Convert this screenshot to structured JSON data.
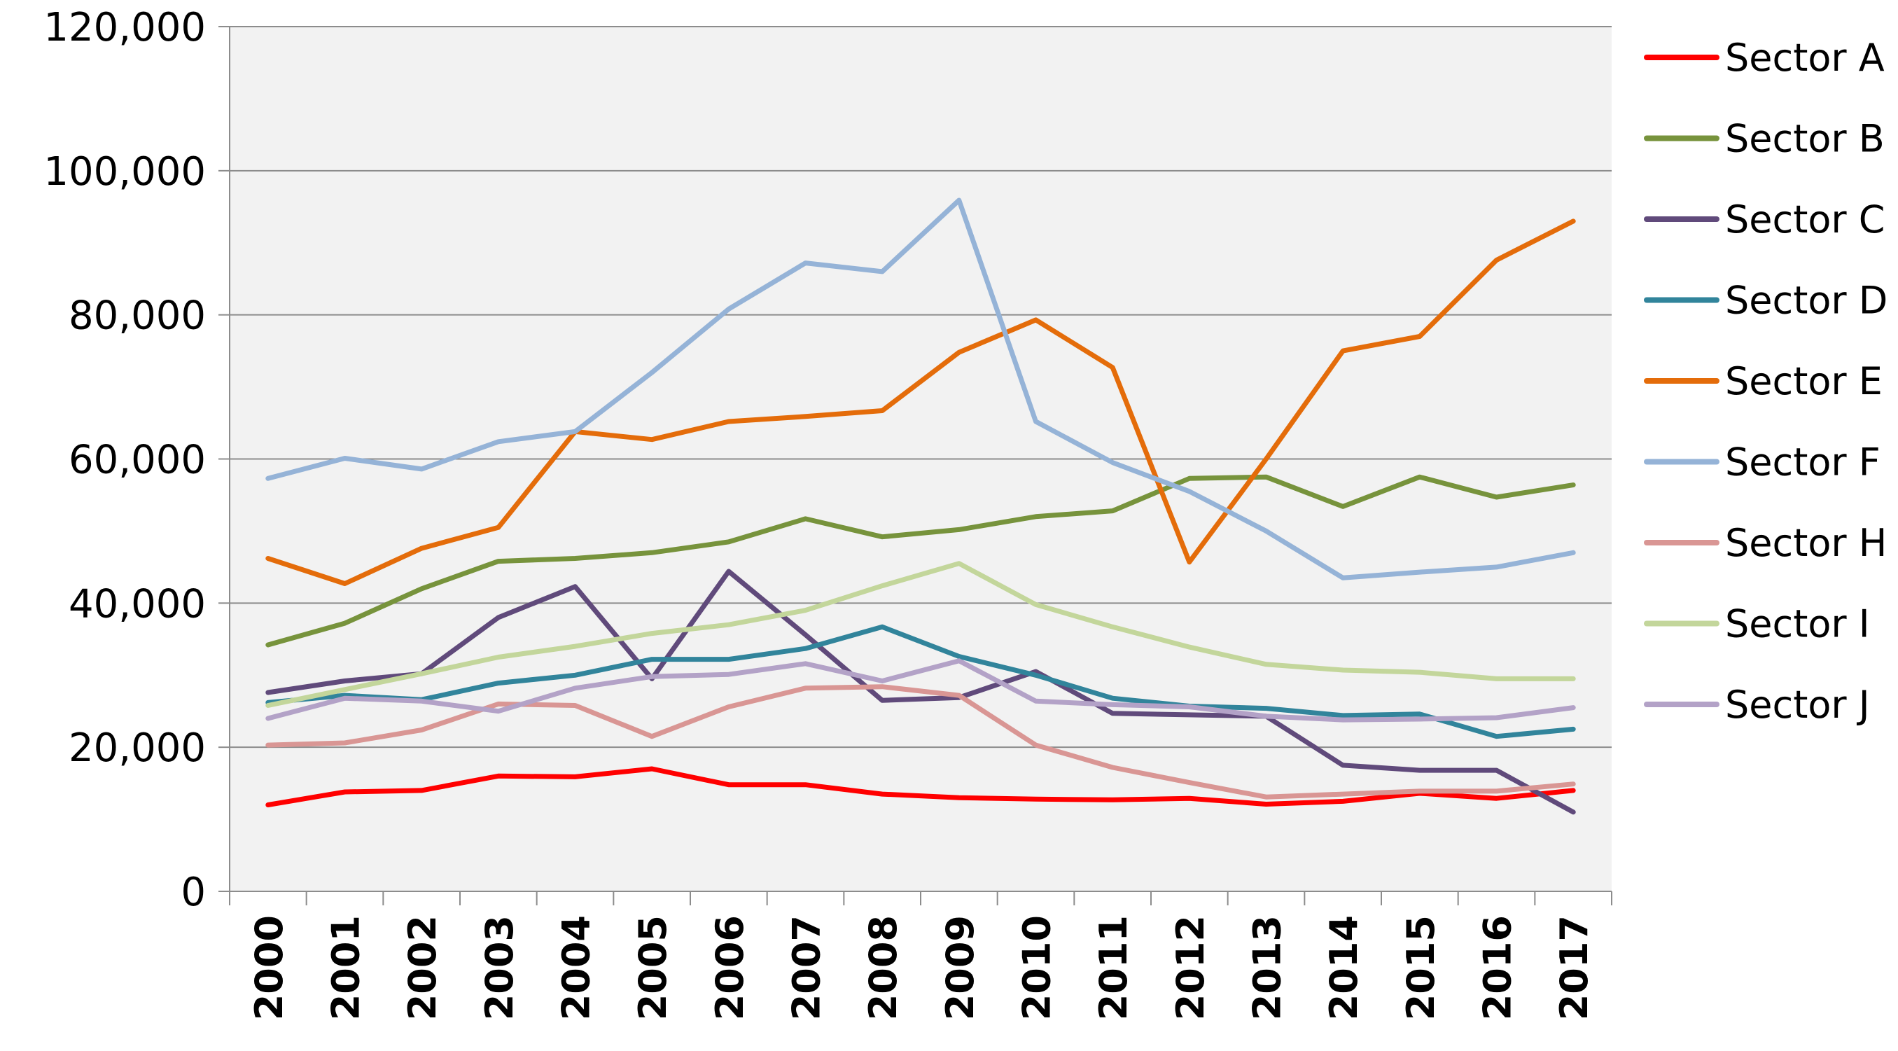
{
  "chart_data": {
    "type": "line",
    "title": "",
    "xlabel": "",
    "ylabel": "",
    "x": [
      "2000",
      "2001",
      "2002",
      "2003",
      "2004",
      "2005",
      "2006",
      "2007",
      "2008",
      "2009",
      "2010",
      "2011",
      "2012",
      "2013",
      "2014",
      "2015",
      "2016",
      "2017"
    ],
    "ylim": [
      0,
      120000
    ],
    "yticks": [
      0,
      20000,
      40000,
      60000,
      80000,
      100000,
      120000
    ],
    "ytick_labels": [
      "0",
      "20,000",
      "40,000",
      "60,000",
      "80,000",
      "100,000",
      "120,000"
    ],
    "grid": "horizontal",
    "plot_background": "#f2f2f2",
    "legend_position": "right",
    "series": [
      {
        "name": "Sector A",
        "color": "#ff0000",
        "values": [
          12000,
          13800,
          14000,
          16000,
          15900,
          17000,
          14800,
          14800,
          13500,
          13000,
          12800,
          12700,
          12900,
          12100,
          12500,
          13600,
          12900,
          14000
        ]
      },
      {
        "name": "Sector B",
        "color": "#77933c",
        "values": [
          34200,
          37200,
          42000,
          45800,
          46200,
          47000,
          48500,
          51700,
          49200,
          50200,
          52000,
          52800,
          57300,
          57500,
          53400,
          57500,
          54700,
          56400
        ]
      },
      {
        "name": "Sector C",
        "color": "#604a7b",
        "values": [
          27600,
          29200,
          30200,
          38000,
          42300,
          29500,
          44400,
          35600,
          26500,
          26900,
          30500,
          24700,
          24500,
          24300,
          17500,
          16800,
          16800,
          11000
        ]
      },
      {
        "name": "Sector D",
        "color": "#31849b",
        "values": [
          26200,
          27200,
          26600,
          28900,
          30000,
          32200,
          32200,
          33700,
          36700,
          32600,
          30000,
          26800,
          25700,
          25400,
          24400,
          24600,
          21500,
          22500
        ]
      },
      {
        "name": "Sector E",
        "color": "#e46c0a",
        "values": [
          46200,
          42700,
          47600,
          50500,
          63800,
          62700,
          65200,
          65900,
          66700,
          74800,
          79300,
          72700,
          45700,
          60000,
          75000,
          77000,
          87600,
          93000
        ]
      },
      {
        "name": "Sector F",
        "color": "#95b3d7",
        "values": [
          57300,
          60100,
          58600,
          62400,
          63800,
          72000,
          80800,
          87200,
          86000,
          95900,
          65200,
          59500,
          55500,
          50000,
          43500,
          44300,
          45000,
          47000
        ]
      },
      {
        "name": "Sector H",
        "color": "#d99694",
        "values": [
          20300,
          20600,
          22400,
          26000,
          25800,
          21500,
          25600,
          28200,
          28400,
          27200,
          20300,
          17200,
          15100,
          13100,
          13500,
          13900,
          13900,
          14900
        ]
      },
      {
        "name": "Sector I",
        "color": "#c3d69b",
        "values": [
          25800,
          28000,
          30200,
          32500,
          34000,
          35800,
          37000,
          39000,
          42400,
          45500,
          39800,
          36700,
          33900,
          31500,
          30700,
          30400,
          29500,
          29500
        ]
      },
      {
        "name": "Sector J",
        "color": "#b3a2c7",
        "values": [
          24000,
          26800,
          26400,
          25000,
          28200,
          29800,
          30100,
          31600,
          29200,
          32000,
          26400,
          25900,
          25600,
          24300,
          23800,
          23900,
          24100,
          25500
        ]
      }
    ]
  }
}
